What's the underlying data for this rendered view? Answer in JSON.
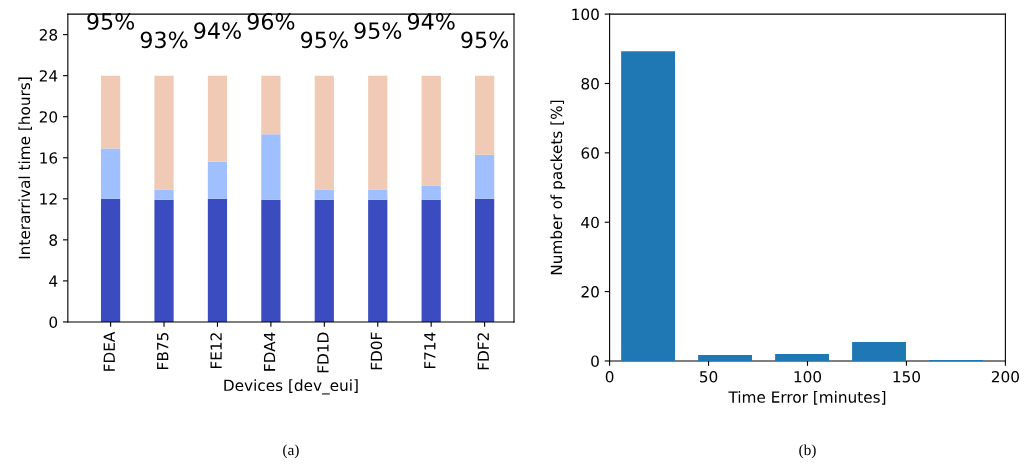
{
  "chart_data": [
    {
      "type": "bar",
      "stacked": true,
      "xlabel": "Devices [dev_eui]",
      "ylabel": "Interarrival time [hours]",
      "categories": [
        "FDEA",
        "FB75",
        "FE12",
        "FDA4",
        "FD1D",
        "FD0F",
        "F714",
        "FDF2"
      ],
      "series": [
        {
          "color": "#3b4cc0",
          "values": [
            12,
            11.9,
            12,
            11.9,
            11.9,
            11.9,
            11.9,
            12
          ]
        },
        {
          "color": "#a0bfff",
          "values": [
            4.9,
            1.0,
            3.6,
            6.4,
            1.0,
            1.0,
            1.4,
            4.3
          ]
        },
        {
          "color": "#f0cab5",
          "values": [
            7.1,
            11.1,
            8.4,
            5.7,
            11.1,
            11.1,
            10.7,
            7.7
          ]
        }
      ],
      "ylim": [
        0,
        30
      ],
      "yticks": [
        0,
        4,
        8,
        12,
        16,
        20,
        24,
        28
      ],
      "grid": false,
      "legend": false,
      "annotations": [
        "95%",
        "93%",
        "94%",
        "96%",
        "95%",
        "95%",
        "94%",
        "95%",
        "(a)"
      ]
    },
    {
      "type": "histogram",
      "xlabel": "Time Error [minutes]",
      "ylabel": "Number of packets [%]",
      "bins": [
        0,
        38.9,
        77.8,
        116.7,
        155.6,
        194.5
      ],
      "values": [
        89.3,
        1.7,
        2.0,
        5.5,
        0.3
      ],
      "color": "#1f77b4",
      "xlim": [
        0,
        200
      ],
      "xticks": [
        0,
        50,
        100,
        150,
        200
      ],
      "ylim": [
        0,
        100
      ],
      "yticks": [
        0,
        20,
        40,
        60,
        80,
        100
      ],
      "grid": false,
      "legend": false,
      "annotations": [
        "(b)"
      ]
    }
  ]
}
